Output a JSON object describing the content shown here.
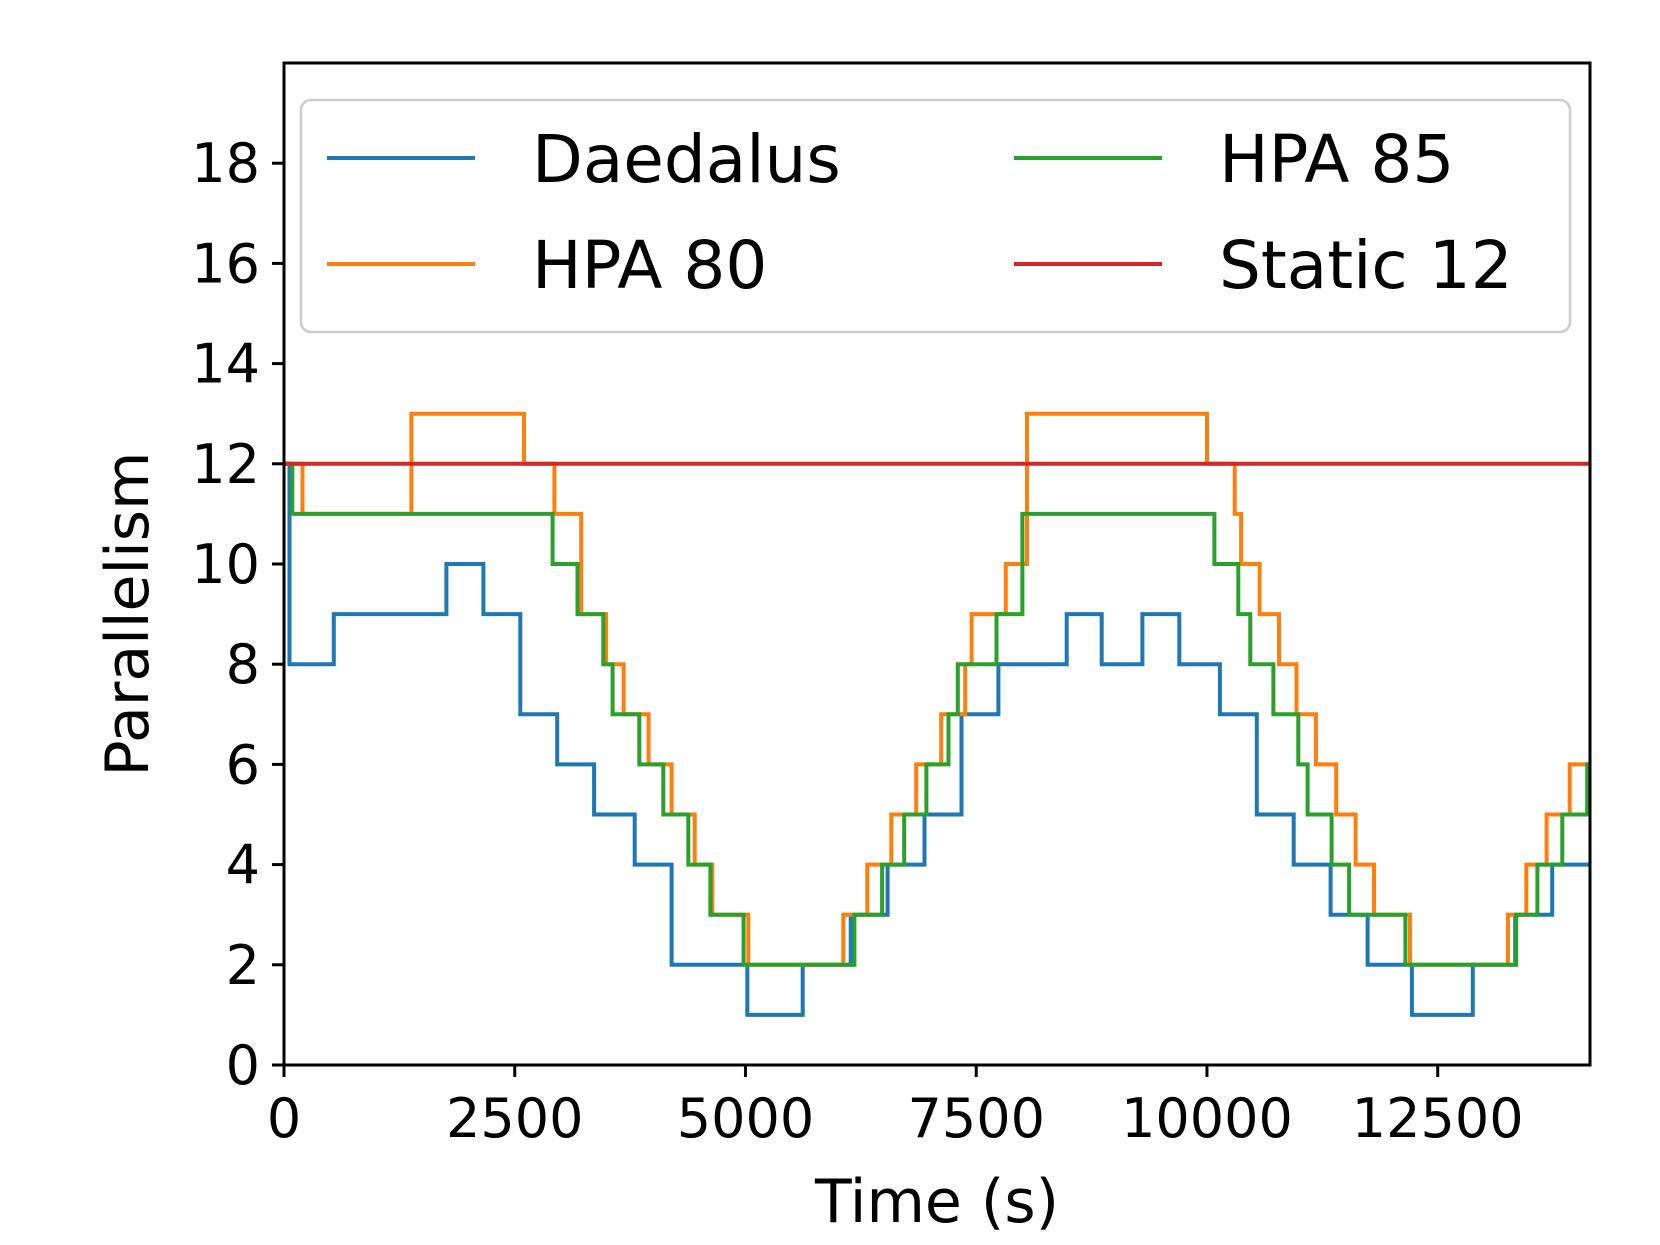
{
  "chart_data": {
    "type": "line",
    "title": "",
    "xlabel": "Time (s)",
    "ylabel": "Parallelism",
    "xlim": [
      0,
      14150
    ],
    "ylim": [
      0,
      20
    ],
    "xticks": [
      0,
      2500,
      5000,
      7500,
      10000,
      12500
    ],
    "xtick_labels": [
      "0",
      "2500",
      "5000",
      "7500",
      "10000",
      "12500"
    ],
    "yticks": [
      0,
      2,
      4,
      6,
      8,
      10,
      12,
      14,
      16,
      18
    ],
    "ytick_labels": [
      "0",
      "2",
      "4",
      "6",
      "8",
      "10",
      "12",
      "14",
      "16",
      "18"
    ],
    "grid": false,
    "legend": {
      "position": "top",
      "columns": 2
    },
    "series": [
      {
        "name": "Daedalus",
        "color": "#1f77b4",
        "points": [
          [
            0,
            12
          ],
          [
            60,
            12
          ],
          [
            60,
            8
          ],
          [
            540,
            8
          ],
          [
            540,
            9
          ],
          [
            1760,
            9
          ],
          [
            1760,
            10
          ],
          [
            2160,
            10
          ],
          [
            2160,
            9
          ],
          [
            2560,
            9
          ],
          [
            2560,
            7
          ],
          [
            2960,
            7
          ],
          [
            2960,
            6
          ],
          [
            3360,
            6
          ],
          [
            3360,
            5
          ],
          [
            3800,
            5
          ],
          [
            3800,
            4
          ],
          [
            4200,
            4
          ],
          [
            4200,
            2
          ],
          [
            5020,
            2
          ],
          [
            5020,
            1
          ],
          [
            5620,
            1
          ],
          [
            5620,
            2
          ],
          [
            6140,
            2
          ],
          [
            6140,
            3
          ],
          [
            6540,
            3
          ],
          [
            6540,
            4
          ],
          [
            6940,
            4
          ],
          [
            6940,
            5
          ],
          [
            7340,
            5
          ],
          [
            7340,
            7
          ],
          [
            7740,
            7
          ],
          [
            7740,
            8
          ],
          [
            8480,
            8
          ],
          [
            8480,
            9
          ],
          [
            8860,
            9
          ],
          [
            8860,
            8
          ],
          [
            9300,
            8
          ],
          [
            9300,
            9
          ],
          [
            9700,
            9
          ],
          [
            9700,
            8
          ],
          [
            10140,
            8
          ],
          [
            10140,
            7
          ],
          [
            10540,
            7
          ],
          [
            10540,
            5
          ],
          [
            10940,
            5
          ],
          [
            10940,
            4
          ],
          [
            11340,
            4
          ],
          [
            11340,
            3
          ],
          [
            11740,
            3
          ],
          [
            11740,
            2
          ],
          [
            12220,
            2
          ],
          [
            12220,
            1
          ],
          [
            12880,
            1
          ],
          [
            12880,
            2
          ],
          [
            13340,
            2
          ],
          [
            13340,
            3
          ],
          [
            13740,
            3
          ],
          [
            13740,
            4
          ],
          [
            14150,
            4
          ]
        ]
      },
      {
        "name": "HPA 80",
        "color": "#ff7f0e",
        "points": [
          [
            0,
            12
          ],
          [
            200,
            12
          ],
          [
            200,
            11
          ],
          [
            1380,
            11
          ],
          [
            1380,
            13
          ],
          [
            2600,
            13
          ],
          [
            2600,
            12
          ],
          [
            2930,
            12
          ],
          [
            2930,
            11
          ],
          [
            3220,
            11
          ],
          [
            3220,
            9
          ],
          [
            3490,
            9
          ],
          [
            3490,
            8
          ],
          [
            3680,
            8
          ],
          [
            3680,
            7
          ],
          [
            3950,
            7
          ],
          [
            3950,
            6
          ],
          [
            4200,
            6
          ],
          [
            4200,
            5
          ],
          [
            4450,
            5
          ],
          [
            4450,
            4
          ],
          [
            4640,
            4
          ],
          [
            4640,
            3
          ],
          [
            5030,
            3
          ],
          [
            5030,
            2
          ],
          [
            6060,
            2
          ],
          [
            6060,
            3
          ],
          [
            6320,
            3
          ],
          [
            6320,
            4
          ],
          [
            6580,
            4
          ],
          [
            6580,
            5
          ],
          [
            6850,
            5
          ],
          [
            6850,
            6
          ],
          [
            7120,
            6
          ],
          [
            7120,
            7
          ],
          [
            7380,
            7
          ],
          [
            7380,
            8
          ],
          [
            7450,
            8
          ],
          [
            7450,
            9
          ],
          [
            7820,
            9
          ],
          [
            7820,
            10
          ],
          [
            8050,
            10
          ],
          [
            8050,
            13
          ],
          [
            10000,
            13
          ],
          [
            10000,
            12
          ],
          [
            10300,
            12
          ],
          [
            10300,
            11
          ],
          [
            10370,
            11
          ],
          [
            10370,
            10
          ],
          [
            10570,
            10
          ],
          [
            10570,
            9
          ],
          [
            10780,
            9
          ],
          [
            10780,
            8
          ],
          [
            10970,
            8
          ],
          [
            10970,
            7
          ],
          [
            11180,
            7
          ],
          [
            11180,
            6
          ],
          [
            11400,
            6
          ],
          [
            11400,
            5
          ],
          [
            11610,
            5
          ],
          [
            11610,
            4
          ],
          [
            11810,
            4
          ],
          [
            11810,
            3
          ],
          [
            12200,
            3
          ],
          [
            12200,
            2
          ],
          [
            13260,
            2
          ],
          [
            13260,
            3
          ],
          [
            13460,
            3
          ],
          [
            13460,
            4
          ],
          [
            13680,
            4
          ],
          [
            13680,
            5
          ],
          [
            13930,
            5
          ],
          [
            13930,
            6
          ],
          [
            14150,
            6
          ]
        ]
      },
      {
        "name": "HPA 85",
        "color": "#2ca02c",
        "points": [
          [
            0,
            12
          ],
          [
            90,
            12
          ],
          [
            90,
            11
          ],
          [
            2910,
            11
          ],
          [
            2910,
            10
          ],
          [
            3180,
            10
          ],
          [
            3180,
            9
          ],
          [
            3460,
            9
          ],
          [
            3460,
            8
          ],
          [
            3560,
            8
          ],
          [
            3560,
            7
          ],
          [
            3850,
            7
          ],
          [
            3850,
            6
          ],
          [
            4110,
            6
          ],
          [
            4110,
            5
          ],
          [
            4380,
            5
          ],
          [
            4380,
            4
          ],
          [
            4620,
            4
          ],
          [
            4620,
            3
          ],
          [
            4980,
            3
          ],
          [
            4980,
            2
          ],
          [
            6180,
            2
          ],
          [
            6180,
            3
          ],
          [
            6480,
            3
          ],
          [
            6480,
            4
          ],
          [
            6720,
            4
          ],
          [
            6720,
            5
          ],
          [
            6960,
            5
          ],
          [
            6960,
            6
          ],
          [
            7200,
            6
          ],
          [
            7200,
            7
          ],
          [
            7300,
            7
          ],
          [
            7300,
            8
          ],
          [
            7720,
            8
          ],
          [
            7720,
            9
          ],
          [
            8000,
            9
          ],
          [
            8000,
            11
          ],
          [
            10080,
            11
          ],
          [
            10080,
            10
          ],
          [
            10340,
            10
          ],
          [
            10340,
            9
          ],
          [
            10470,
            9
          ],
          [
            10470,
            8
          ],
          [
            10720,
            8
          ],
          [
            10720,
            7
          ],
          [
            10990,
            7
          ],
          [
            10990,
            6
          ],
          [
            11090,
            6
          ],
          [
            11090,
            5
          ],
          [
            11350,
            5
          ],
          [
            11350,
            4
          ],
          [
            11540,
            4
          ],
          [
            11540,
            3
          ],
          [
            12150,
            3
          ],
          [
            12150,
            2
          ],
          [
            13350,
            2
          ],
          [
            13350,
            3
          ],
          [
            13580,
            3
          ],
          [
            13580,
            4
          ],
          [
            13850,
            4
          ],
          [
            13850,
            5
          ],
          [
            14120,
            5
          ],
          [
            14120,
            6
          ],
          [
            14150,
            6
          ]
        ]
      },
      {
        "name": "Static 12",
        "color": "#d62728",
        "points": [
          [
            0,
            12
          ],
          [
            14150,
            12
          ]
        ]
      }
    ]
  }
}
